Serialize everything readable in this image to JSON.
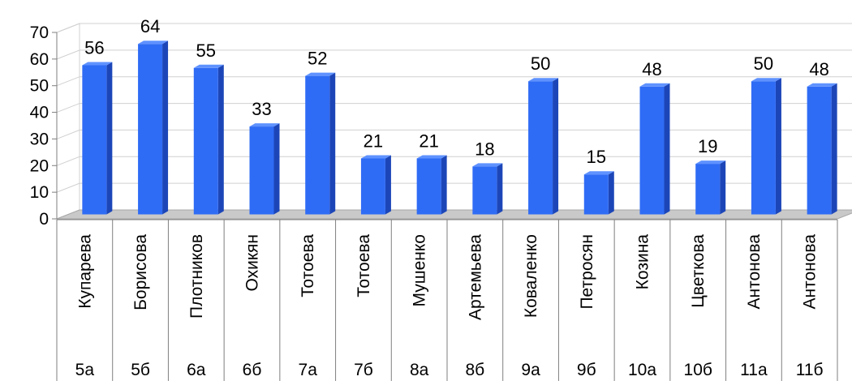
{
  "chart_data": {
    "type": "bar",
    "title": "",
    "xlabel": "",
    "ylabel": "",
    "ylim": [
      0,
      70
    ],
    "yticks": [
      0,
      10,
      20,
      30,
      40,
      50,
      60,
      70
    ],
    "grid": true,
    "legend": "none",
    "style": "3d-column",
    "categories": [
      {
        "name": "Купарева",
        "class": "5а"
      },
      {
        "name": "Борисова",
        "class": "5б"
      },
      {
        "name": "Плотников",
        "class": "6а"
      },
      {
        "name": "Охикян",
        "class": "6б"
      },
      {
        "name": "Тотоева",
        "class": "7а"
      },
      {
        "name": "Тотоева",
        "class": "7б"
      },
      {
        "name": "Мушенко",
        "class": "8а"
      },
      {
        "name": "Артемьева",
        "class": "8б"
      },
      {
        "name": "Коваленко",
        "class": "9а"
      },
      {
        "name": "Петросян",
        "class": "9б"
      },
      {
        "name": "Козина",
        "class": "10а"
      },
      {
        "name": "Цветкова",
        "class": "10б"
      },
      {
        "name": "Антонова",
        "class": "11а"
      },
      {
        "name": "Антонова",
        "class": "11б"
      }
    ],
    "series": [
      {
        "values": [
          56,
          64,
          55,
          33,
          52,
          21,
          21,
          18,
          50,
          15,
          48,
          19,
          50,
          48
        ]
      }
    ],
    "colors": {
      "bar_front": "#2f6cf5",
      "bar_side": "#1c46b8",
      "bar_top": "#5f92ff",
      "floor": "#c9c9c9",
      "grid": "#d0d0d0",
      "axis": "#7f7f7f",
      "text": "#000000"
    }
  }
}
